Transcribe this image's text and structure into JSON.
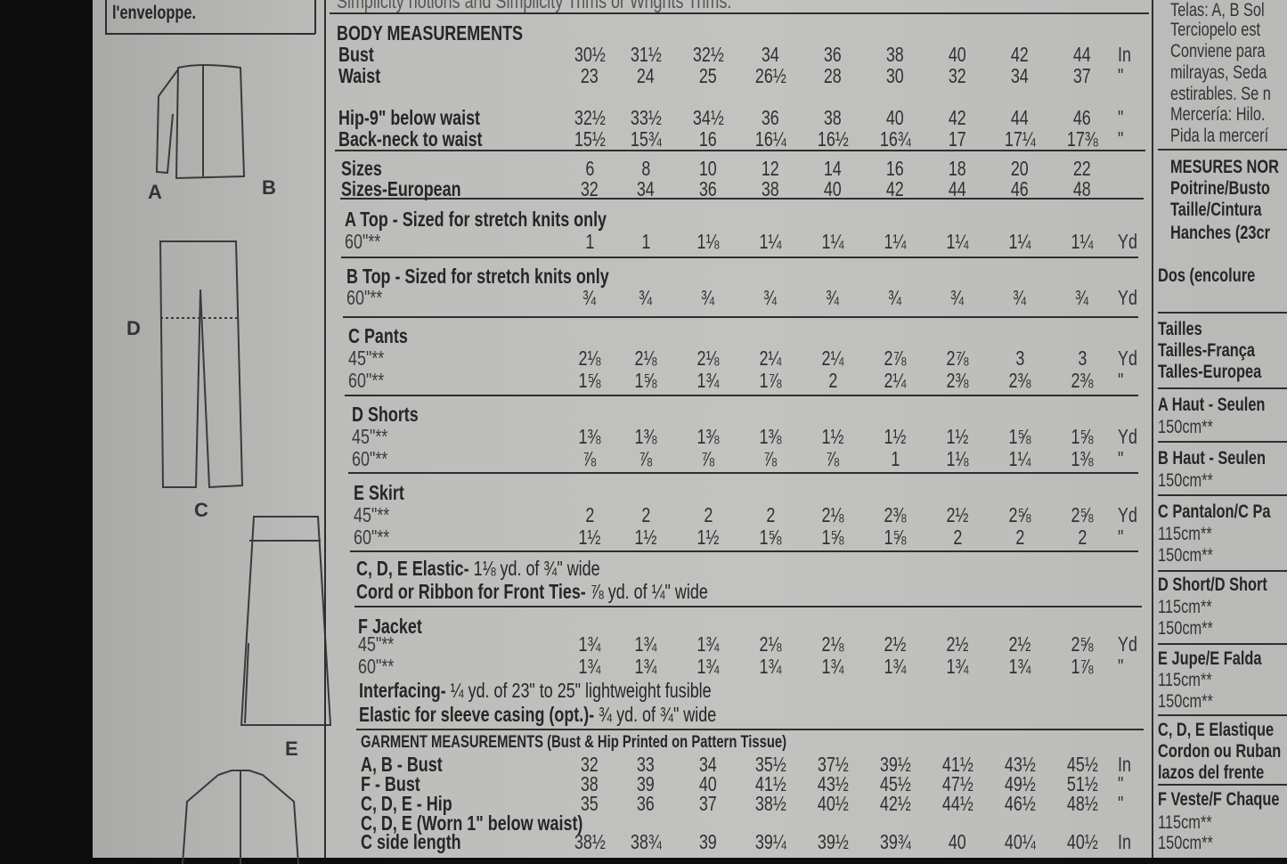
{
  "top_fragment": "Simplicity notions and Simplicity Trims   or Wrights   Trims.",
  "left_panel": {
    "envelope_text": "l'enveloppe.",
    "view_letters": {
      "a": "A",
      "b": "B",
      "d": "D",
      "c": "C",
      "e": "E"
    }
  },
  "table": {
    "units": {
      "inch": "In",
      "ditto": "\"",
      "yard": "Yd"
    },
    "body_measurements": {
      "title": "BODY MEASUREMENTS",
      "rows": [
        {
          "label": "Bust",
          "values": [
            "30½",
            "31½",
            "32½",
            "34",
            "36",
            "38",
            "40",
            "42",
            "44"
          ],
          "unit": "In"
        },
        {
          "label": "Waist",
          "values": [
            "23",
            "24",
            "25",
            "26½",
            "28",
            "30",
            "32",
            "34",
            "37"
          ],
          "unit": "\""
        },
        {
          "label": "Hip-9\" below waist",
          "values": [
            "32½",
            "33½",
            "34½",
            "36",
            "38",
            "40",
            "42",
            "44",
            "46"
          ],
          "unit": "\""
        },
        {
          "label": "Back-neck to waist",
          "values": [
            "15½",
            "15¾",
            "16",
            "16¼",
            "16½",
            "16¾",
            "17",
            "17¼",
            "17⅜"
          ],
          "unit": "\""
        }
      ]
    },
    "sizes": [
      {
        "label": "Sizes",
        "values": [
          "6",
          "8",
          "10",
          "12",
          "14",
          "16",
          "18",
          "20",
          "22"
        ],
        "unit": ""
      },
      {
        "label": "Sizes-European",
        "values": [
          "32",
          "34",
          "36",
          "38",
          "40",
          "42",
          "44",
          "46",
          "48"
        ],
        "unit": ""
      }
    ],
    "views": [
      {
        "title": "A Top - Sized for stretch knits only",
        "rows": [
          {
            "label": "60\"**",
            "values": [
              "1",
              "1",
              "1⅛",
              "1¼",
              "1¼",
              "1¼",
              "1¼",
              "1¼",
              "1¼"
            ],
            "unit": "Yd"
          }
        ]
      },
      {
        "title": "B Top - Sized for stretch knits only",
        "rows": [
          {
            "label": "60\"**",
            "values": [
              "¾",
              "¾",
              "¾",
              "¾",
              "¾",
              "¾",
              "¾",
              "¾",
              "¾"
            ],
            "unit": "Yd"
          }
        ]
      },
      {
        "title": "C Pants",
        "rows": [
          {
            "label": "45\"**",
            "values": [
              "2⅛",
              "2⅛",
              "2⅛",
              "2¼",
              "2¼",
              "2⅞",
              "2⅞",
              "3",
              "3"
            ],
            "unit": "Yd"
          },
          {
            "label": "60\"**",
            "values": [
              "1⅝",
              "1⅝",
              "1¾",
              "1⅞",
              "2",
              "2¼",
              "2⅜",
              "2⅜",
              "2⅜"
            ],
            "unit": "\""
          }
        ]
      },
      {
        "title": "D Shorts",
        "rows": [
          {
            "label": "45\"**",
            "values": [
              "1⅜",
              "1⅜",
              "1⅜",
              "1⅜",
              "1½",
              "1½",
              "1½",
              "1⅝",
              "1⅝"
            ],
            "unit": "Yd"
          },
          {
            "label": "60\"**",
            "values": [
              "⅞",
              "⅞",
              "⅞",
              "⅞",
              "⅞",
              "1",
              "1⅛",
              "1¼",
              "1⅜"
            ],
            "unit": "\""
          }
        ]
      },
      {
        "title": "E Skirt",
        "rows": [
          {
            "label": "45\"**",
            "values": [
              "2",
              "2",
              "2",
              "2",
              "2⅛",
              "2⅜",
              "2½",
              "2⅝",
              "2⅝"
            ],
            "unit": "Yd"
          },
          {
            "label": "60\"**",
            "values": [
              "1½",
              "1½",
              "1½",
              "1⅝",
              "1⅝",
              "1⅝",
              "2",
              "2",
              "2"
            ],
            "unit": "\""
          }
        ]
      }
    ],
    "notions_cde": [
      {
        "label": "C, D, E Elastic-",
        "text": " 1⅛ yd. of ¾\" wide"
      },
      {
        "label": "Cord or Ribbon for Front Ties-",
        "text": " ⅞ yd. of ¼\" wide"
      }
    ],
    "jacket": {
      "title": "F Jacket",
      "rows": [
        {
          "label": "45\"**",
          "values": [
            "1¾",
            "1¾",
            "1¾",
            "2⅛",
            "2⅛",
            "2½",
            "2½",
            "2½",
            "2⅝"
          ],
          "unit": "Yd"
        },
        {
          "label": "60\"**",
          "values": [
            "1¾",
            "1¾",
            "1¾",
            "1¾",
            "1¾",
            "1¾",
            "1¾",
            "1¾",
            "1⅞"
          ],
          "unit": "\""
        }
      ],
      "notions": [
        {
          "label": "Interfacing-",
          "text": " ¼ yd. of 23\" to 25\" lightweight fusible"
        },
        {
          "label": "Elastic for sleeve casing (opt.)-",
          "text": " ¾ yd. of ¾\" wide"
        }
      ]
    },
    "garment_measurements": {
      "title": "GARMENT MEASUREMENTS (Bust & Hip Printed on Pattern Tissue)",
      "rows": [
        {
          "label": "A, B - Bust",
          "values": [
            "32",
            "33",
            "34",
            "35½",
            "37½",
            "39½",
            "41½",
            "43½",
            "45½"
          ],
          "unit": "In"
        },
        {
          "label": "F - Bust",
          "values": [
            "38",
            "39",
            "40",
            "41½",
            "43½",
            "45½",
            "47½",
            "49½",
            "51½"
          ],
          "unit": "\""
        },
        {
          "label": "C, D, E - Hip",
          "values": [
            "35",
            "36",
            "37",
            "38½",
            "40½",
            "42½",
            "44½",
            "46½",
            "48½"
          ],
          "unit": "\""
        },
        {
          "label": "C, D, E (Worn 1\" below waist)",
          "values": [],
          "unit": ""
        },
        {
          "label": "C side length",
          "values": [
            "38½",
            "38¾",
            "39",
            "39¼",
            "39½",
            "39¾",
            "40",
            "40¼",
            "40½"
          ],
          "unit": "In"
        }
      ]
    }
  },
  "right_panel": {
    "lines": [
      {
        "text": "Telas: A, B Sol",
        "bold": false
      },
      {
        "text": "Terciopelo est",
        "bold": false
      },
      {
        "text": "Conviene para",
        "bold": false
      },
      {
        "text": "milrayas, Seda",
        "bold": false
      },
      {
        "text": "estirables. Se n",
        "bold": false
      },
      {
        "text": "Mercería: Hilo.",
        "bold": false
      },
      {
        "text": "Pida la mercerí",
        "bold": false
      },
      {
        "text": "MESURES NOR",
        "bold": true
      },
      {
        "text": "Poitrine/Busto",
        "bold": true
      },
      {
        "text": "Taille/Cintura",
        "bold": true
      },
      {
        "text": "Hanches (23cr",
        "bold": true
      },
      {
        "text": "Dos (encolure",
        "bold": true
      },
      {
        "text": "Tailles",
        "bold": true
      },
      {
        "text": "Tailles-França",
        "bold": true
      },
      {
        "text": "Talles-Europea",
        "bold": true
      },
      {
        "text": "A Haut - Seulen",
        "bold": true
      },
      {
        "text": "150cm**",
        "bold": false
      },
      {
        "text": "B Haut - Seulen",
        "bold": true
      },
      {
        "text": "150cm**",
        "bold": false
      },
      {
        "text": "C Pantalon/C Pa",
        "bold": true
      },
      {
        "text": "115cm**",
        "bold": false
      },
      {
        "text": "150cm**",
        "bold": false
      },
      {
        "text": "D Short/D Short",
        "bold": true
      },
      {
        "text": "115cm**",
        "bold": false
      },
      {
        "text": "150cm**",
        "bold": false
      },
      {
        "text": "E Jupe/E Falda",
        "bold": true
      },
      {
        "text": "115cm**",
        "bold": false
      },
      {
        "text": "150cm**",
        "bold": false
      },
      {
        "text": "C, D, E Elastique",
        "bold": true
      },
      {
        "text": "Cordon ou Ruban",
        "bold": true
      },
      {
        "text": "lazos del frente",
        "bold": true
      },
      {
        "text": "F Veste/F Chaque",
        "bold": true
      },
      {
        "text": "115cm**",
        "bold": false
      },
      {
        "text": "150cm**",
        "bold": false
      }
    ]
  }
}
